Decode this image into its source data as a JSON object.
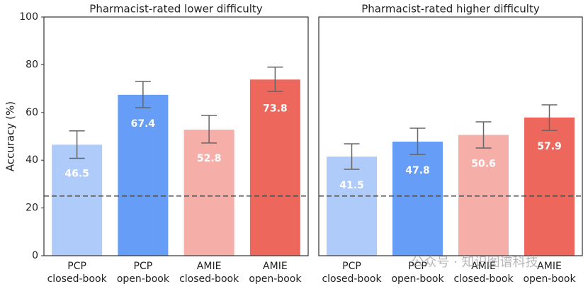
{
  "chart_data": [
    {
      "type": "bar",
      "title": "Pharmacist-rated lower difficulty",
      "y_label": "Accuracy (%)",
      "categories": [
        "PCP\nclosed-book",
        "PCP\nopen-book",
        "AMIE\nclosed-book",
        "AMIE\nopen-book"
      ],
      "values": [
        46.5,
        67.4,
        52.8,
        73.8
      ],
      "error_low": [
        40.8,
        62.0,
        47.2,
        68.8
      ],
      "error_high": [
        52.3,
        73.0,
        58.8,
        79.0
      ],
      "colors": [
        "#aecbfa",
        "#669df6",
        "#f6aea9",
        "#ee675c"
      ],
      "ylim": [
        0,
        100
      ],
      "yticks": [
        0,
        20,
        40,
        60,
        80,
        100
      ],
      "reference_line": 25
    },
    {
      "type": "bar",
      "title": "Pharmacist-rated higher difficulty",
      "categories": [
        "PCP\nclosed-book",
        "PCP\nopen-book",
        "AMIE\nclosed-book",
        "AMIE\nopen-book"
      ],
      "values": [
        41.5,
        47.8,
        50.6,
        57.9
      ],
      "error_low": [
        36.2,
        42.4,
        45.1,
        52.5
      ],
      "error_high": [
        46.9,
        53.4,
        56.1,
        63.2
      ],
      "colors": [
        "#aecbfa",
        "#669df6",
        "#f6aea9",
        "#ee675c"
      ],
      "ylim": [
        0,
        100
      ],
      "reference_line": 25
    }
  ],
  "watermark": "公众号 · 知识图谱科技"
}
